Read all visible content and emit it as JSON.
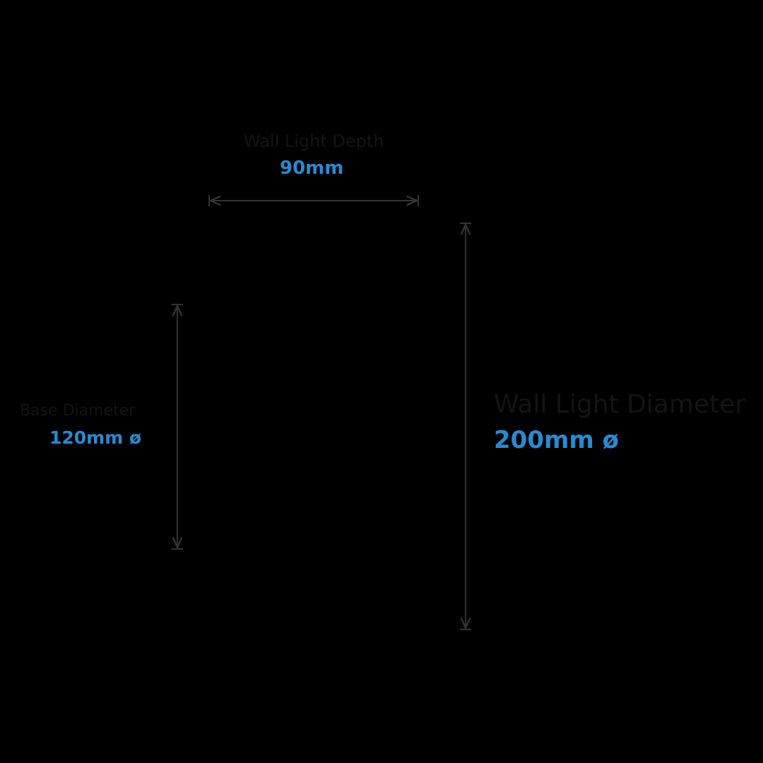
{
  "colors": {
    "background": "#000000",
    "label": "#141414",
    "value": "#2a8ad0",
    "dimension_line": "#333333"
  },
  "dimensions": {
    "depth": {
      "label": "Wall Light Depth",
      "value": "90mm"
    },
    "base": {
      "label": "Base Diameter",
      "value": "120mm ø"
    },
    "diameter": {
      "label": "Wall Light Diameter",
      "value": "200mm ø"
    }
  }
}
